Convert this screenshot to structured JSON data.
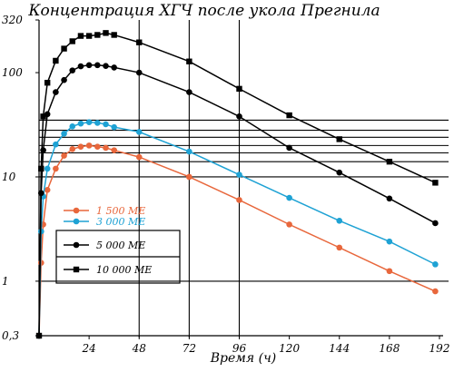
{
  "chart_data": {
    "type": "line",
    "title": "Концентрация ХГЧ после укола Прегнила",
    "xlabel": "Время (ч)",
    "ylabel": "",
    "yscale": "log",
    "xlim": [
      0,
      192
    ],
    "ylim": [
      0.3,
      320
    ],
    "x_ticks": [
      24,
      48,
      72,
      96,
      120,
      144,
      168,
      192
    ],
    "y_ticks": [
      {
        "value": 320,
        "label": "320"
      },
      {
        "value": 100,
        "label": "100"
      },
      {
        "value": 10,
        "label": "10"
      },
      {
        "value": 1,
        "label": "1"
      },
      {
        "value": 0.3,
        "label": "0,3"
      }
    ],
    "vertical_grid": [
      48,
      72,
      96
    ],
    "horizontal_grid": [
      1,
      10,
      14,
      17,
      20,
      24,
      28,
      35
    ],
    "legend": {
      "placement": "left-middle"
    },
    "series": [
      {
        "name": "1 500 МЕ",
        "color": "#e8673c",
        "marker": "circle",
        "points": [
          [
            0,
            0.3
          ],
          [
            1,
            1.5
          ],
          [
            2,
            3.5
          ],
          [
            4,
            7.5
          ],
          [
            8,
            12
          ],
          [
            12,
            16
          ],
          [
            16,
            18.5
          ],
          [
            20,
            19.5
          ],
          [
            24,
            20
          ],
          [
            28,
            19.5
          ],
          [
            32,
            19
          ],
          [
            36,
            18
          ],
          [
            48,
            15.5
          ],
          [
            72,
            10
          ],
          [
            96,
            6
          ],
          [
            120,
            3.5
          ],
          [
            144,
            2.1
          ],
          [
            168,
            1.25
          ],
          [
            190,
            0.8
          ]
        ]
      },
      {
        "name": "3 000 МЕ",
        "color": "#1ea2d4",
        "marker": "circle",
        "points": [
          [
            0,
            0.3
          ],
          [
            1,
            3
          ],
          [
            2,
            6.5
          ],
          [
            4,
            12
          ],
          [
            8,
            20.5
          ],
          [
            12,
            26
          ],
          [
            16,
            30.5
          ],
          [
            20,
            32.5
          ],
          [
            24,
            33.5
          ],
          [
            28,
            33
          ],
          [
            32,
            32
          ],
          [
            36,
            30
          ],
          [
            48,
            27
          ],
          [
            72,
            17.5
          ],
          [
            96,
            10.5
          ],
          [
            120,
            6.3
          ],
          [
            144,
            3.8
          ],
          [
            168,
            2.4
          ],
          [
            190,
            1.45
          ]
        ]
      },
      {
        "name": "5 000 МЕ",
        "color": "#000000",
        "marker": "circle",
        "points": [
          [
            0,
            0.3
          ],
          [
            1,
            7
          ],
          [
            2,
            18
          ],
          [
            4,
            40
          ],
          [
            8,
            65
          ],
          [
            12,
            85
          ],
          [
            16,
            105
          ],
          [
            20,
            115
          ],
          [
            24,
            118
          ],
          [
            28,
            118
          ],
          [
            32,
            116
          ],
          [
            36,
            112
          ],
          [
            48,
            100
          ],
          [
            72,
            65
          ],
          [
            96,
            38
          ],
          [
            120,
            19
          ],
          [
            144,
            11
          ],
          [
            168,
            6.2
          ],
          [
            190,
            3.6
          ]
        ]
      },
      {
        "name": "10 000 МЕ",
        "color": "#000000",
        "marker": "square",
        "points": [
          [
            0,
            0.3
          ],
          [
            1,
            12
          ],
          [
            2,
            38
          ],
          [
            4,
            80
          ],
          [
            8,
            130
          ],
          [
            12,
            170
          ],
          [
            16,
            200
          ],
          [
            20,
            225
          ],
          [
            24,
            225
          ],
          [
            28,
            230
          ],
          [
            32,
            240
          ],
          [
            36,
            230
          ],
          [
            48,
            195
          ],
          [
            72,
            128
          ],
          [
            96,
            70
          ],
          [
            120,
            39
          ],
          [
            144,
            23
          ],
          [
            168,
            14
          ],
          [
            190,
            8.8
          ]
        ]
      }
    ]
  }
}
